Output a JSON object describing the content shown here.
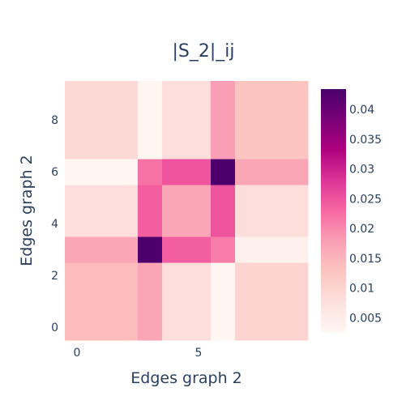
{
  "chart_data": {
    "type": "heatmap",
    "title": "|S_2|_ij",
    "xlabel": "Edges graph 2",
    "ylabel": "Edges graph 2",
    "x": [
      0,
      1,
      2,
      3,
      4,
      5,
      6,
      7,
      8,
      9
    ],
    "y": [
      0,
      1,
      2,
      3,
      4,
      5,
      6,
      7,
      8,
      9
    ],
    "x_tick_labels": [
      "0",
      "5"
    ],
    "y_tick_labels": [
      "0",
      "2",
      "4",
      "6",
      "8"
    ],
    "z": [
      [
        0.014,
        0.014,
        0.014,
        0.017,
        0.008,
        0.008,
        0.003,
        0.01,
        0.01,
        0.01
      ],
      [
        0.014,
        0.014,
        0.014,
        0.017,
        0.008,
        0.008,
        0.003,
        0.01,
        0.01,
        0.01
      ],
      [
        0.014,
        0.014,
        0.014,
        0.017,
        0.008,
        0.008,
        0.003,
        0.01,
        0.01,
        0.01
      ],
      [
        0.017,
        0.017,
        0.017,
        0.043,
        0.024,
        0.024,
        0.021,
        0.004,
        0.004,
        0.004
      ],
      [
        0.008,
        0.008,
        0.008,
        0.024,
        0.017,
        0.017,
        0.025,
        0.008,
        0.008,
        0.008
      ],
      [
        0.008,
        0.008,
        0.008,
        0.024,
        0.017,
        0.017,
        0.025,
        0.008,
        0.008,
        0.008
      ],
      [
        0.003,
        0.003,
        0.003,
        0.022,
        0.025,
        0.025,
        0.043,
        0.017,
        0.017,
        0.017
      ],
      [
        0.009,
        0.009,
        0.009,
        0.003,
        0.008,
        0.008,
        0.018,
        0.013,
        0.013,
        0.013
      ],
      [
        0.009,
        0.009,
        0.009,
        0.003,
        0.008,
        0.008,
        0.018,
        0.013,
        0.013,
        0.013
      ],
      [
        0.009,
        0.009,
        0.009,
        0.003,
        0.008,
        0.008,
        0.018,
        0.013,
        0.013,
        0.013
      ]
    ],
    "zlim": [
      0.0026,
      0.0434
    ],
    "colorbar": {
      "tick_values": [
        0.005,
        0.01,
        0.015,
        0.02,
        0.025,
        0.03,
        0.035,
        0.04
      ],
      "tick_labels": [
        "0.005",
        "0.01",
        "0.015",
        "0.02",
        "0.025",
        "0.03",
        "0.035",
        "0.04"
      ],
      "colorscale": [
        "#fff7f3",
        "#fde0dd",
        "#fcc5c0",
        "#fa9fb5",
        "#f768a1",
        "#dd3497",
        "#ae017e",
        "#7a0177",
        "#49006a"
      ]
    },
    "grid": false,
    "legend": "colorbar-right"
  }
}
